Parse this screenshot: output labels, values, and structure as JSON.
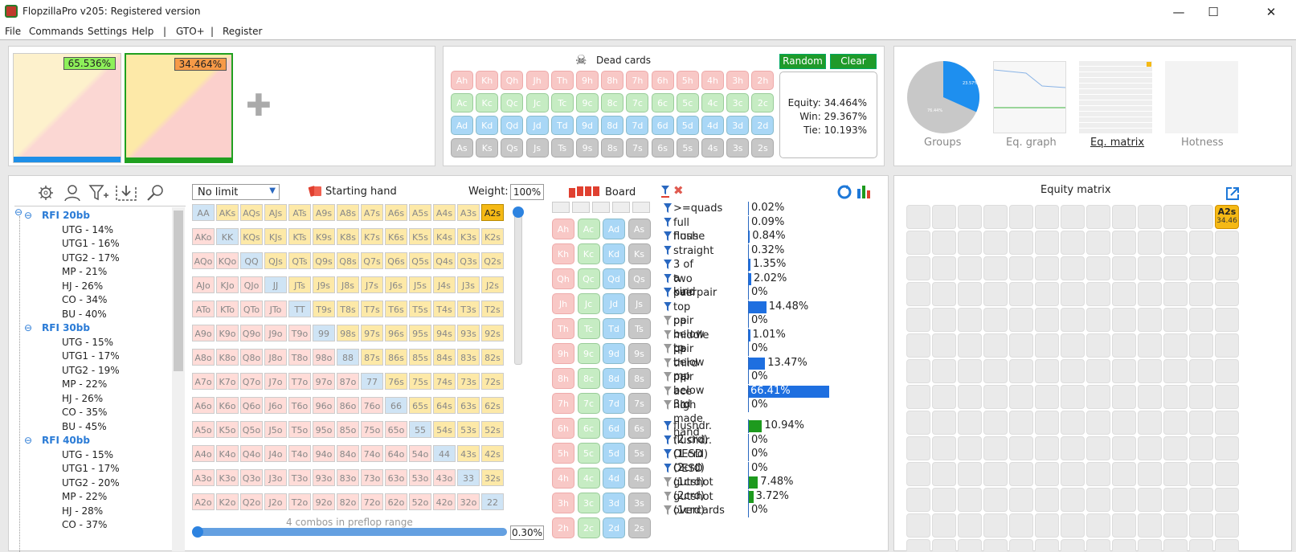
{
  "window": {
    "title": "FlopzillaPro v205: Registered version",
    "min_glyph": "—",
    "max_glyph": "☐",
    "close_glyph": "✕"
  },
  "menu": {
    "file": "File",
    "commands": "Commands",
    "settings": "Settings",
    "help": "Help",
    "sep1": "|",
    "gto": "GTO+",
    "sep2": "|",
    "register": "Register"
  },
  "ranges": {
    "range1_pct": "65.536%",
    "range2_pct": "34.464%",
    "add_glyph": "✚"
  },
  "dead": {
    "title": "Dead cards",
    "random": "Random",
    "clear": "Clear",
    "rows": [
      [
        "Ah",
        "Kh",
        "Qh",
        "Jh",
        "Th",
        "9h",
        "8h",
        "7h",
        "6h",
        "5h",
        "4h",
        "3h",
        "2h"
      ],
      [
        "Ac",
        "Kc",
        "Qc",
        "Jc",
        "Tc",
        "9c",
        "8c",
        "7c",
        "6c",
        "5c",
        "4c",
        "3c",
        "2c"
      ],
      [
        "Ad",
        "Kd",
        "Qd",
        "Jd",
        "Td",
        "9d",
        "8d",
        "7d",
        "6d",
        "5d",
        "4d",
        "3d",
        "2d"
      ],
      [
        "As",
        "Ks",
        "Qs",
        "Js",
        "Ts",
        "9s",
        "8s",
        "7s",
        "6s",
        "5s",
        "4s",
        "3s",
        "2s"
      ]
    ]
  },
  "equity": {
    "equity": "Equity: 34.464%",
    "win": "Win: 29.367%",
    "tie": "Tie: 10.193%"
  },
  "views": {
    "groups": "Groups",
    "eq_graph": "Eq. graph",
    "eq_matrix": "Eq. matrix",
    "hotness": "Hotness"
  },
  "pie": {
    "big_label": "76.44%",
    "small_label": "23.57%"
  },
  "tree": {
    "groups": [
      {
        "label": "RFI 20bb",
        "items": [
          "UTG  - 14%",
          "UTG1 - 16%",
          "UTG2 - 17%",
          "MP - 21%",
          "HJ - 26%",
          "CO - 34%",
          "BU - 40%"
        ]
      },
      {
        "label": "RFI 30bb",
        "items": [
          "UTG - 15%",
          "UTG1 - 17%",
          "UTG2 - 19%",
          "MP - 22%",
          "HJ - 26%",
          "CO - 35%",
          "BU - 45%"
        ]
      },
      {
        "label": "RFI 40bb",
        "items": [
          "UTG - 15%",
          "UTG1 - 17%",
          "UTG2 - 20%",
          "MP - 22%",
          "HJ - 28%",
          "CO - 37%"
        ]
      }
    ],
    "collapse_glyph": "⊖"
  },
  "matrix": {
    "limit": "No limit",
    "starting_hand": "Starting hand",
    "weight_label": "Weight:",
    "weight_value": "100%",
    "combos": "4 combos in preflop range",
    "percent": "0.30%",
    "rows": [
      [
        "AA",
        "AKs",
        "AQs",
        "AJs",
        "ATs",
        "A9s",
        "A8s",
        "A7s",
        "A6s",
        "A5s",
        "A4s",
        "A3s",
        "A2s"
      ],
      [
        "AKo",
        "KK",
        "KQs",
        "KJs",
        "KTs",
        "K9s",
        "K8s",
        "K7s",
        "K6s",
        "K5s",
        "K4s",
        "K3s",
        "K2s"
      ],
      [
        "AQo",
        "KQo",
        "QQ",
        "QJs",
        "QTs",
        "Q9s",
        "Q8s",
        "Q7s",
        "Q6s",
        "Q5s",
        "Q4s",
        "Q3s",
        "Q2s"
      ],
      [
        "AJo",
        "KJo",
        "QJo",
        "JJ",
        "JTs",
        "J9s",
        "J8s",
        "J7s",
        "J6s",
        "J5s",
        "J4s",
        "J3s",
        "J2s"
      ],
      [
        "ATo",
        "KTo",
        "QTo",
        "JTo",
        "TT",
        "T9s",
        "T8s",
        "T7s",
        "T6s",
        "T5s",
        "T4s",
        "T3s",
        "T2s"
      ],
      [
        "A9o",
        "K9o",
        "Q9o",
        "J9o",
        "T9o",
        "99",
        "98s",
        "97s",
        "96s",
        "95s",
        "94s",
        "93s",
        "92s"
      ],
      [
        "A8o",
        "K8o",
        "Q8o",
        "J8o",
        "T8o",
        "98o",
        "88",
        "87s",
        "86s",
        "85s",
        "84s",
        "83s",
        "82s"
      ],
      [
        "A7o",
        "K7o",
        "Q7o",
        "J7o",
        "T7o",
        "97o",
        "87o",
        "77",
        "76s",
        "75s",
        "74s",
        "73s",
        "72s"
      ],
      [
        "A6o",
        "K6o",
        "Q6o",
        "J6o",
        "T6o",
        "96o",
        "86o",
        "76o",
        "66",
        "65s",
        "64s",
        "63s",
        "62s"
      ],
      [
        "A5o",
        "K5o",
        "Q5o",
        "J5o",
        "T5o",
        "95o",
        "85o",
        "75o",
        "65o",
        "55",
        "54s",
        "53s",
        "52s"
      ],
      [
        "A4o",
        "K4o",
        "Q4o",
        "J4o",
        "T4o",
        "94o",
        "84o",
        "74o",
        "64o",
        "54o",
        "44",
        "43s",
        "42s"
      ],
      [
        "A3o",
        "K3o",
        "Q3o",
        "J3o",
        "T3o",
        "93o",
        "83o",
        "73o",
        "63o",
        "53o",
        "43o",
        "33",
        "32s"
      ],
      [
        "A2o",
        "K2o",
        "Q2o",
        "J2o",
        "T2o",
        "92o",
        "82o",
        "72o",
        "62o",
        "52o",
        "42o",
        "32o",
        "22"
      ]
    ],
    "selected": "A2s"
  },
  "board": {
    "title": "Board",
    "rows": [
      [
        "Ah",
        "Ac",
        "Ad",
        "As"
      ],
      [
        "Kh",
        "Kc",
        "Kd",
        "Ks"
      ],
      [
        "Qh",
        "Qc",
        "Qd",
        "Qs"
      ],
      [
        "Jh",
        "Jc",
        "Jd",
        "Js"
      ],
      [
        "Th",
        "Tc",
        "Td",
        "Ts"
      ],
      [
        "9h",
        "9c",
        "9d",
        "9s"
      ],
      [
        "8h",
        "8c",
        "8d",
        "8s"
      ],
      [
        "7h",
        "7c",
        "7d",
        "7s"
      ],
      [
        "6h",
        "6c",
        "6d",
        "6s"
      ],
      [
        "5h",
        "5c",
        "5d",
        "5s"
      ],
      [
        "4h",
        "4c",
        "4d",
        "4s"
      ],
      [
        "3h",
        "3c",
        "3d",
        "3s"
      ],
      [
        "2h",
        "2c",
        "2d",
        "2s"
      ]
    ]
  },
  "filters": {
    "made": [
      {
        "label": ">=quads",
        "value": "0.02%",
        "pct": 0.02,
        "active": true
      },
      {
        "label": "full house",
        "value": "0.09%",
        "pct": 0.09,
        "active": true
      },
      {
        "label": "flush",
        "value": "0.84%",
        "pct": 0.84,
        "active": true
      },
      {
        "label": "straight",
        "value": "0.32%",
        "pct": 0.32,
        "active": true
      },
      {
        "label": "3 of a kind",
        "value": "1.35%",
        "pct": 1.35,
        "active": true
      },
      {
        "label": "two pair",
        "value": "2.02%",
        "pct": 2.02,
        "active": true
      },
      {
        "label": "overpair",
        "value": "0%",
        "pct": 0,
        "active": true
      },
      {
        "label": "top pair",
        "value": "14.48%",
        "pct": 14.48,
        "active": true
      },
      {
        "label": "pp below tp",
        "value": "0%",
        "pct": 0,
        "active": false
      },
      {
        "label": "middle pair",
        "value": "1.01%",
        "pct": 1.01,
        "active": false
      },
      {
        "label": "pp below mp",
        "value": "0%",
        "pct": 0,
        "active": false
      },
      {
        "label": "third pair",
        "value": "13.47%",
        "pct": 13.47,
        "active": false
      },
      {
        "label": "pp below 3rd",
        "value": "0%",
        "pct": 0,
        "active": false
      },
      {
        "label": "ace high",
        "value": "66.41%",
        "pct": 66.41,
        "active": false
      },
      {
        "label": "no made hand",
        "value": "0%",
        "pct": 0,
        "active": false
      }
    ],
    "draws": [
      {
        "label": "flushdr. (2 crd)",
        "value": "10.94%",
        "pct": 10.94,
        "active": true
      },
      {
        "label": "flushdr. (1 crd)",
        "value": "0%",
        "pct": 0,
        "active": true
      },
      {
        "label": "OESD (2crd)",
        "value": "0%",
        "pct": 0,
        "active": true
      },
      {
        "label": "OESD (1crd)",
        "value": "0%",
        "pct": 0,
        "active": true
      },
      {
        "label": "gutshot (2crd)",
        "value": "7.48%",
        "pct": 7.48,
        "active": false
      },
      {
        "label": "gutshot (1crd)",
        "value": "3.72%",
        "pct": 3.72,
        "active": false
      },
      {
        "label": "overcards",
        "value": "0%",
        "pct": 0,
        "active": false
      }
    ]
  },
  "eqmatrix": {
    "title": "Equity matrix",
    "hand": "A2s",
    "value": "34.46"
  },
  "colors": {
    "accent": "#1e90ff",
    "green": "#1f9a2a",
    "selected": "#f5b915"
  }
}
